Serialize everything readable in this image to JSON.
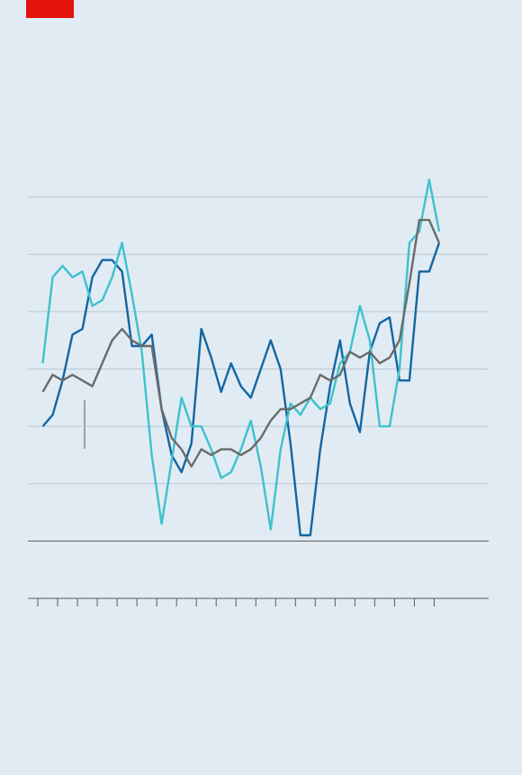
{
  "chart_data": {
    "type": "line",
    "x": [
      1,
      3,
      5,
      7,
      9,
      11,
      13,
      15,
      17,
      19,
      21,
      23,
      25,
      27,
      29,
      31,
      33,
      35,
      37,
      39,
      41,
      43,
      45,
      47,
      49,
      51,
      53,
      55,
      57,
      59,
      61,
      63,
      65,
      67,
      69,
      71,
      73,
      75,
      77,
      79,
      81
    ],
    "series": [
      {
        "color": "#1366a3",
        "values": [
          2.0,
          2.2,
          2.8,
          3.6,
          3.7,
          4.6,
          4.9,
          4.9,
          4.7,
          3.4,
          3.4,
          3.6,
          2.3,
          1.5,
          1.2,
          1.7,
          3.7,
          3.2,
          2.6,
          3.1,
          2.7,
          2.5,
          3.0,
          3.5,
          3.0,
          1.7,
          0.1,
          0.1,
          1.6,
          2.7,
          3.5,
          2.4,
          1.9,
          3.3,
          3.8,
          3.9,
          2.8,
          2.8,
          4.7,
          4.7,
          5.2
        ]
      },
      {
        "color": "#3ec1cf",
        "values": [
          3.1,
          4.6,
          4.8,
          4.6,
          4.7,
          4.1,
          4.2,
          4.6,
          5.2,
          4.3,
          3.3,
          1.5,
          0.3,
          1.4,
          2.5,
          2.0,
          2.0,
          1.6,
          1.1,
          1.2,
          1.6,
          2.1,
          1.3,
          0.2,
          1.6,
          2.4,
          2.2,
          2.5,
          2.3,
          2.4,
          3.1,
          3.3,
          4.1,
          3.5,
          2.0,
          2.0,
          3.0,
          5.2,
          5.4,
          6.3,
          5.4
        ]
      },
      {
        "color": "#6b6b6b",
        "values": [
          2.6,
          2.9,
          2.8,
          2.9,
          2.8,
          2.7,
          3.1,
          3.5,
          3.7,
          3.5,
          3.4,
          3.4,
          2.3,
          1.8,
          1.6,
          1.3,
          1.6,
          1.5,
          1.6,
          1.6,
          1.5,
          1.6,
          1.8,
          2.1,
          2.3,
          2.3,
          2.4,
          2.5,
          2.9,
          2.8,
          2.9,
          3.3,
          3.2,
          3.3,
          3.1,
          3.2,
          3.5,
          4.5,
          5.6,
          5.6,
          5.2
        ]
      }
    ],
    "xlim": [
      -2,
      91
    ],
    "xticks": [
      0,
      4,
      8,
      12,
      16,
      20,
      24,
      28,
      32,
      36,
      40,
      44,
      48,
      52,
      56,
      60,
      64,
      68,
      72,
      76,
      80
    ],
    "ylim": [
      -1,
      7
    ],
    "yticks": [
      -1,
      0,
      1,
      2,
      3,
      4,
      5,
      6
    ],
    "grid": true
  }
}
